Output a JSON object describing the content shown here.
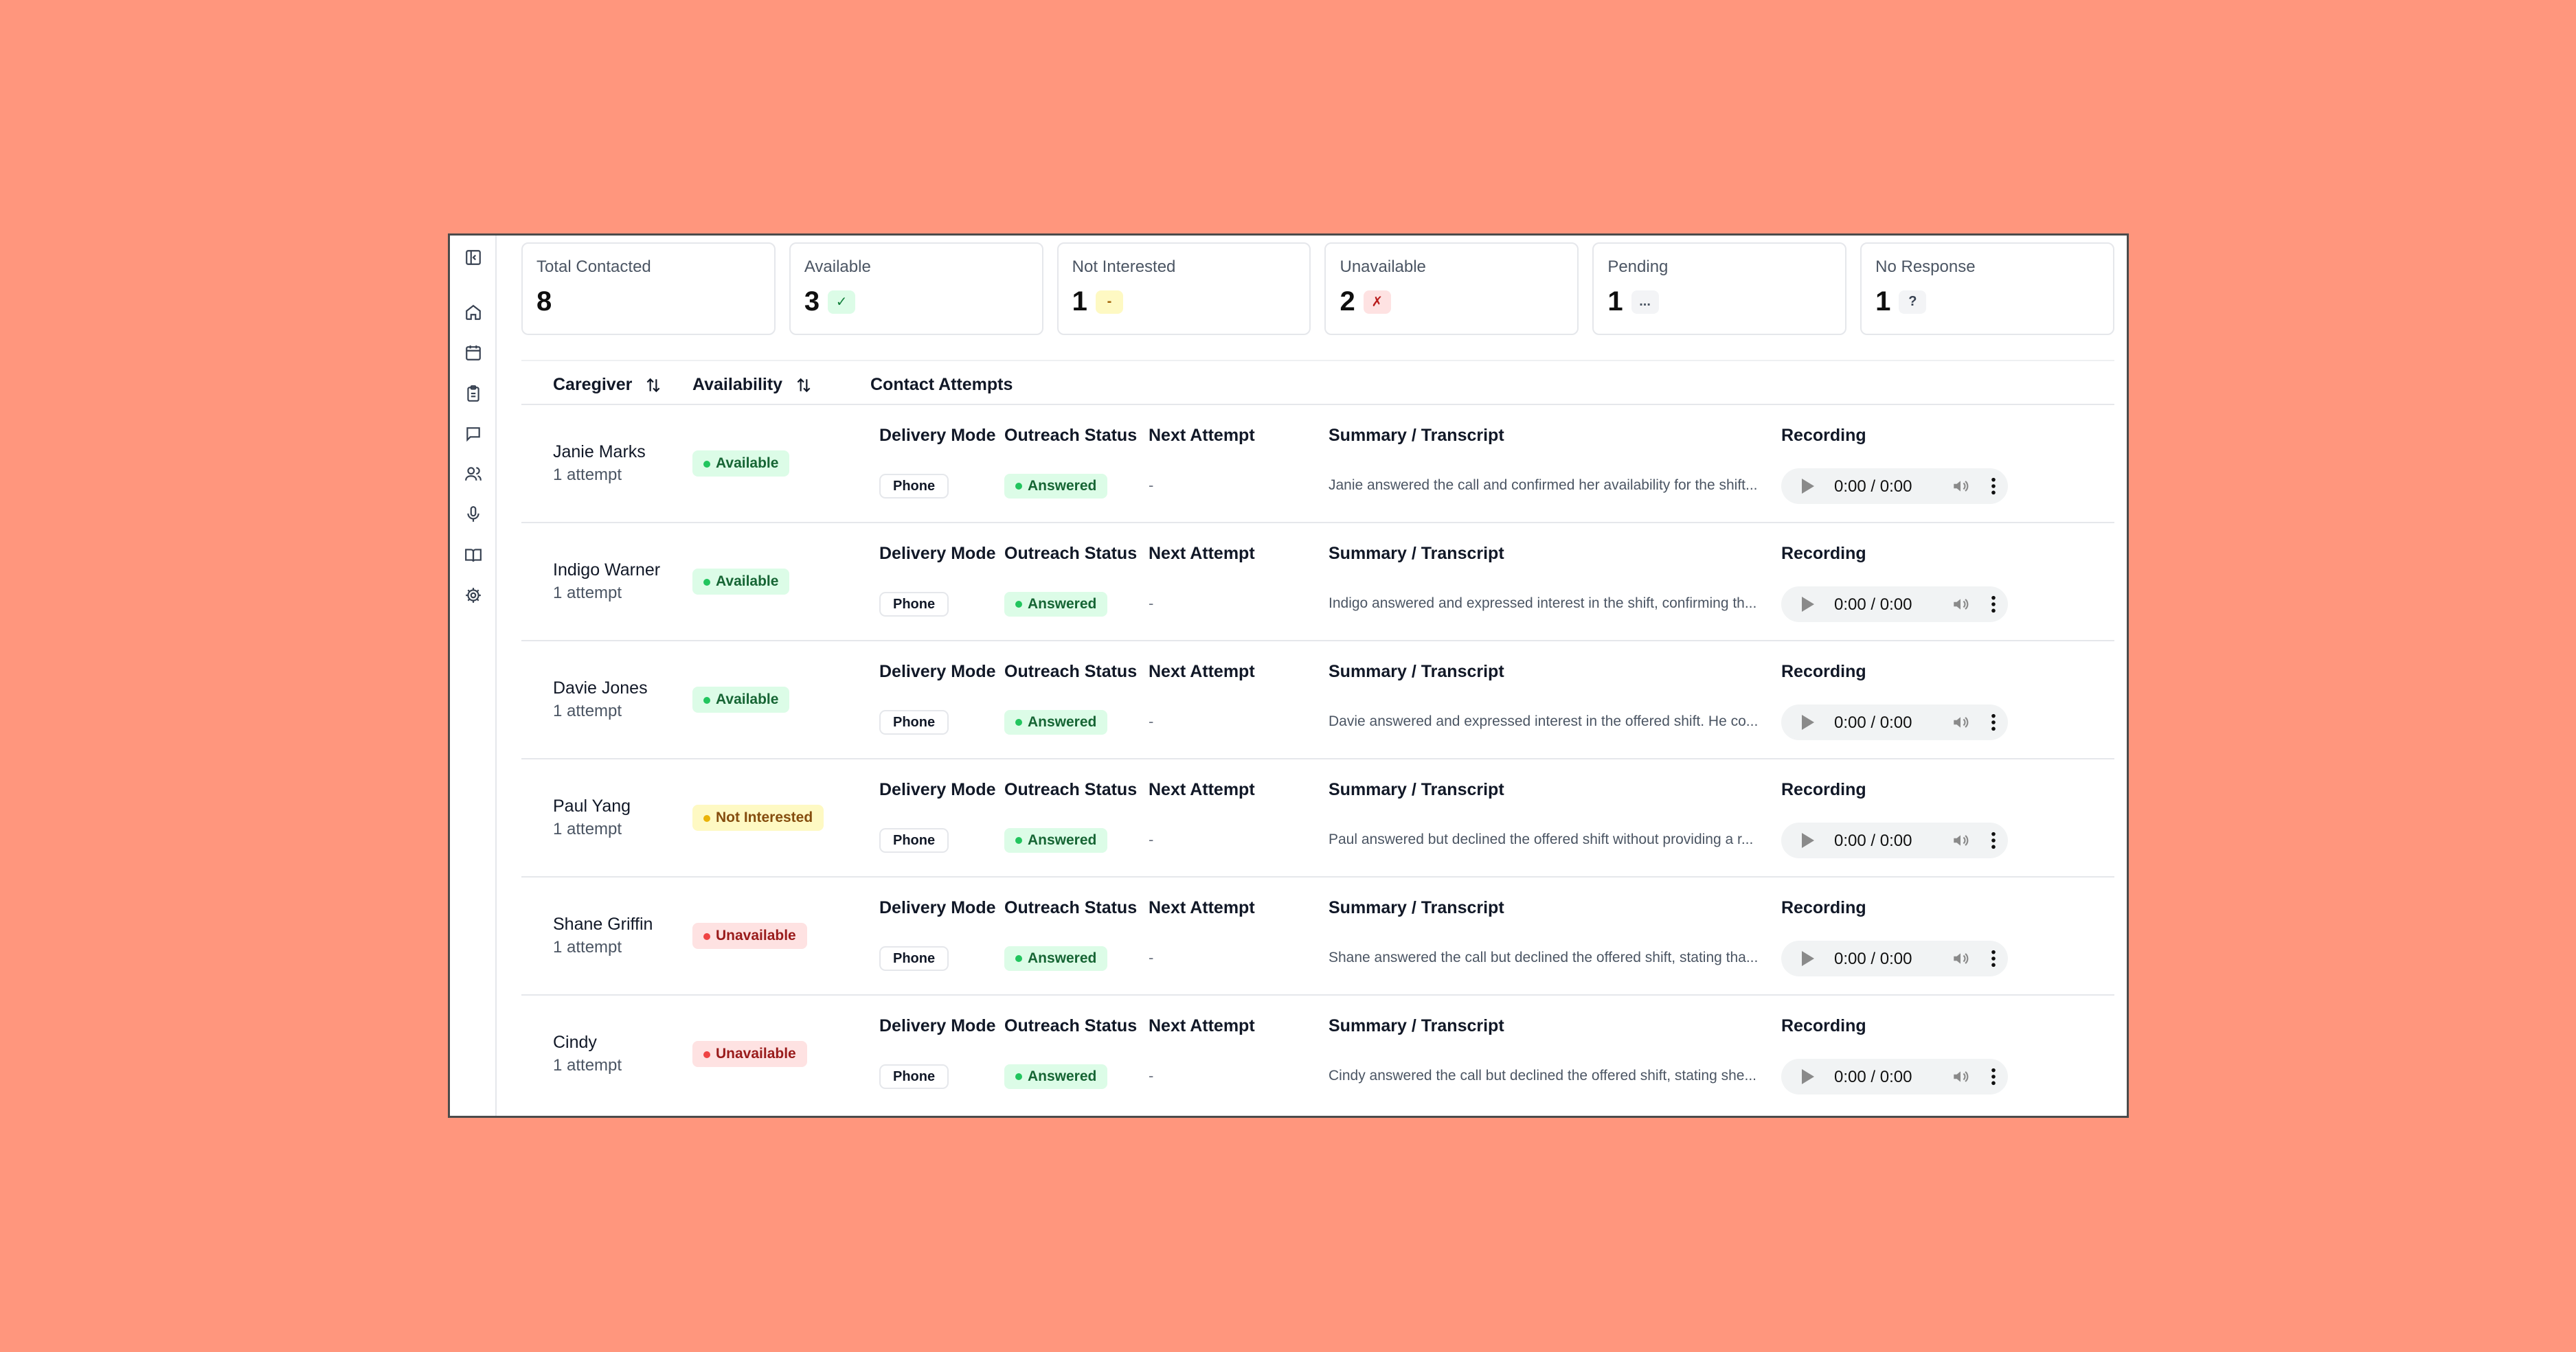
{
  "stats": [
    {
      "label": "Total Contacted",
      "value": "8",
      "badge": ""
    },
    {
      "label": "Available",
      "value": "3",
      "badge": "✓",
      "badge_bg": "#dcfce7",
      "badge_fg": "#15803d"
    },
    {
      "label": "Not Interested",
      "value": "1",
      "badge": "-",
      "badge_bg": "#fef9c3",
      "badge_fg": "#a16207"
    },
    {
      "label": "Unavailable",
      "value": "2",
      "badge": "✗",
      "badge_bg": "#fee2e2",
      "badge_fg": "#b91c1c"
    },
    {
      "label": "Pending",
      "value": "1",
      "badge": "...",
      "badge_bg": "#f3f4f6",
      "badge_fg": "#4b5563"
    },
    {
      "label": "No Response",
      "value": "1",
      "badge": "?",
      "badge_bg": "#f3f4f6",
      "badge_fg": "#374151"
    }
  ],
  "table": {
    "headers": {
      "caregiver": "Caregiver",
      "availability": "Availability",
      "contact_attempts": "Contact Attempts"
    },
    "sub_headers": {
      "delivery_mode": "Delivery Mode",
      "outreach_status": "Outreach Status",
      "next_attempt": "Next Attempt",
      "summary": "Summary / Transcript",
      "recording": "Recording"
    },
    "rows": [
      {
        "name": "Janie Marks",
        "attempts": "1 attempt",
        "availability": "Available",
        "avail_kind": "available",
        "delivery": "Phone",
        "status": "Answered",
        "next": "-",
        "summary": "Janie answered the call and confirmed her availability for the shift...",
        "time": "0:00 / 0:00"
      },
      {
        "name": "Indigo Warner",
        "attempts": "1 attempt",
        "availability": "Available",
        "avail_kind": "available",
        "delivery": "Phone",
        "status": "Answered",
        "next": "-",
        "summary": "Indigo answered and expressed interest in the shift, confirming th...",
        "time": "0:00 / 0:00"
      },
      {
        "name": "Davie Jones",
        "attempts": "1 attempt",
        "availability": "Available",
        "avail_kind": "available",
        "delivery": "Phone",
        "status": "Answered",
        "next": "-",
        "summary": "Davie answered and expressed interest in the offered shift. He co...",
        "time": "0:00 / 0:00"
      },
      {
        "name": "Paul Yang",
        "attempts": "1 attempt",
        "availability": "Not Interested",
        "avail_kind": "not-interested",
        "delivery": "Phone",
        "status": "Answered",
        "next": "-",
        "summary": "Paul answered but declined the offered shift without providing a r...",
        "time": "0:00 / 0:00"
      },
      {
        "name": "Shane Griffin",
        "attempts": "1 attempt",
        "availability": "Unavailable",
        "avail_kind": "unavailable",
        "delivery": "Phone",
        "status": "Answered",
        "next": "-",
        "summary": "Shane answered the call but declined the offered shift, stating tha...",
        "time": "0:00 / 0:00"
      },
      {
        "name": "Cindy",
        "attempts": "1 attempt",
        "availability": "Unavailable",
        "avail_kind": "unavailable",
        "delivery": "Phone",
        "status": "Answered",
        "next": "-",
        "summary": "Cindy answered the call but declined the offered shift, stating she...",
        "time": "0:00 / 0:00"
      }
    ]
  },
  "badge_colors": {
    "available": {
      "bg": "#dcfce7",
      "fg": "#166534",
      "dot": "#22c55e"
    },
    "not-interested": {
      "bg": "#fef9c3",
      "fg": "#854d0e",
      "dot": "#eab308"
    },
    "unavailable": {
      "bg": "#fee2e2",
      "fg": "#991b1b",
      "dot": "#ef4444"
    }
  },
  "sidebar_icons": [
    "sidebar-toggle-icon",
    "home-icon",
    "calendar-icon",
    "clipboard-icon",
    "chat-icon",
    "users-icon",
    "microphone-icon",
    "book-icon",
    "settings-icon"
  ]
}
